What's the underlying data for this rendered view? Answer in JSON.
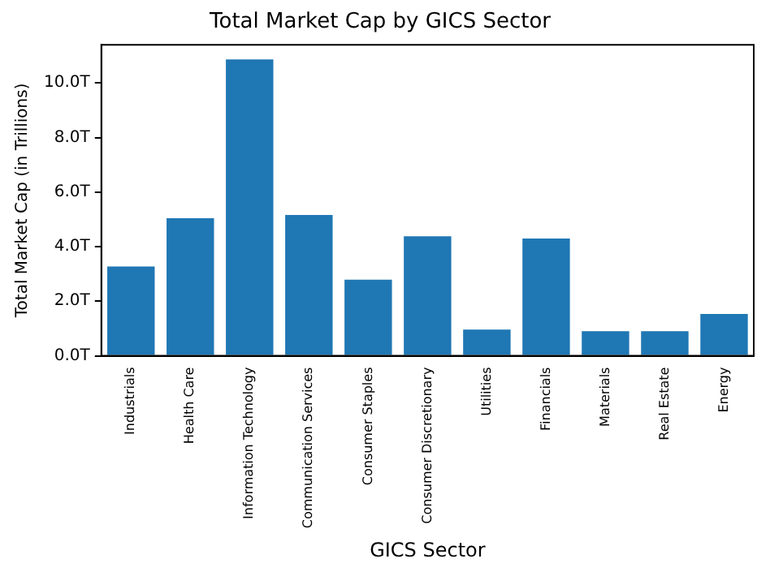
{
  "chart_data": {
    "type": "bar",
    "title": "Total Market Cap by GICS Sector",
    "xlabel": "GICS Sector",
    "ylabel": "Total Market Cap (in Trillions)",
    "categories": [
      "Industrials",
      "Health Care",
      "Information Technology",
      "Communication Services",
      "Consumer Staples",
      "Consumer Discretionary",
      "Utilities",
      "Financials",
      "Materials",
      "Real Estate",
      "Energy"
    ],
    "values": [
      3.27,
      5.04,
      10.86,
      5.16,
      2.79,
      4.38,
      0.96,
      4.3,
      0.9,
      0.9,
      1.53
    ],
    "color": "#1f77b4",
    "ylim": [
      0,
      11.4
    ],
    "yticks": [
      {
        "value": 0,
        "label": "0.0T"
      },
      {
        "value": 2,
        "label": "2.0T"
      },
      {
        "value": 4,
        "label": "4.0T"
      },
      {
        "value": 6,
        "label": "6.0T"
      },
      {
        "value": 8,
        "label": "8.0T"
      },
      {
        "value": 10,
        "label": "10.0T"
      }
    ],
    "grid": false,
    "legend": false
  }
}
